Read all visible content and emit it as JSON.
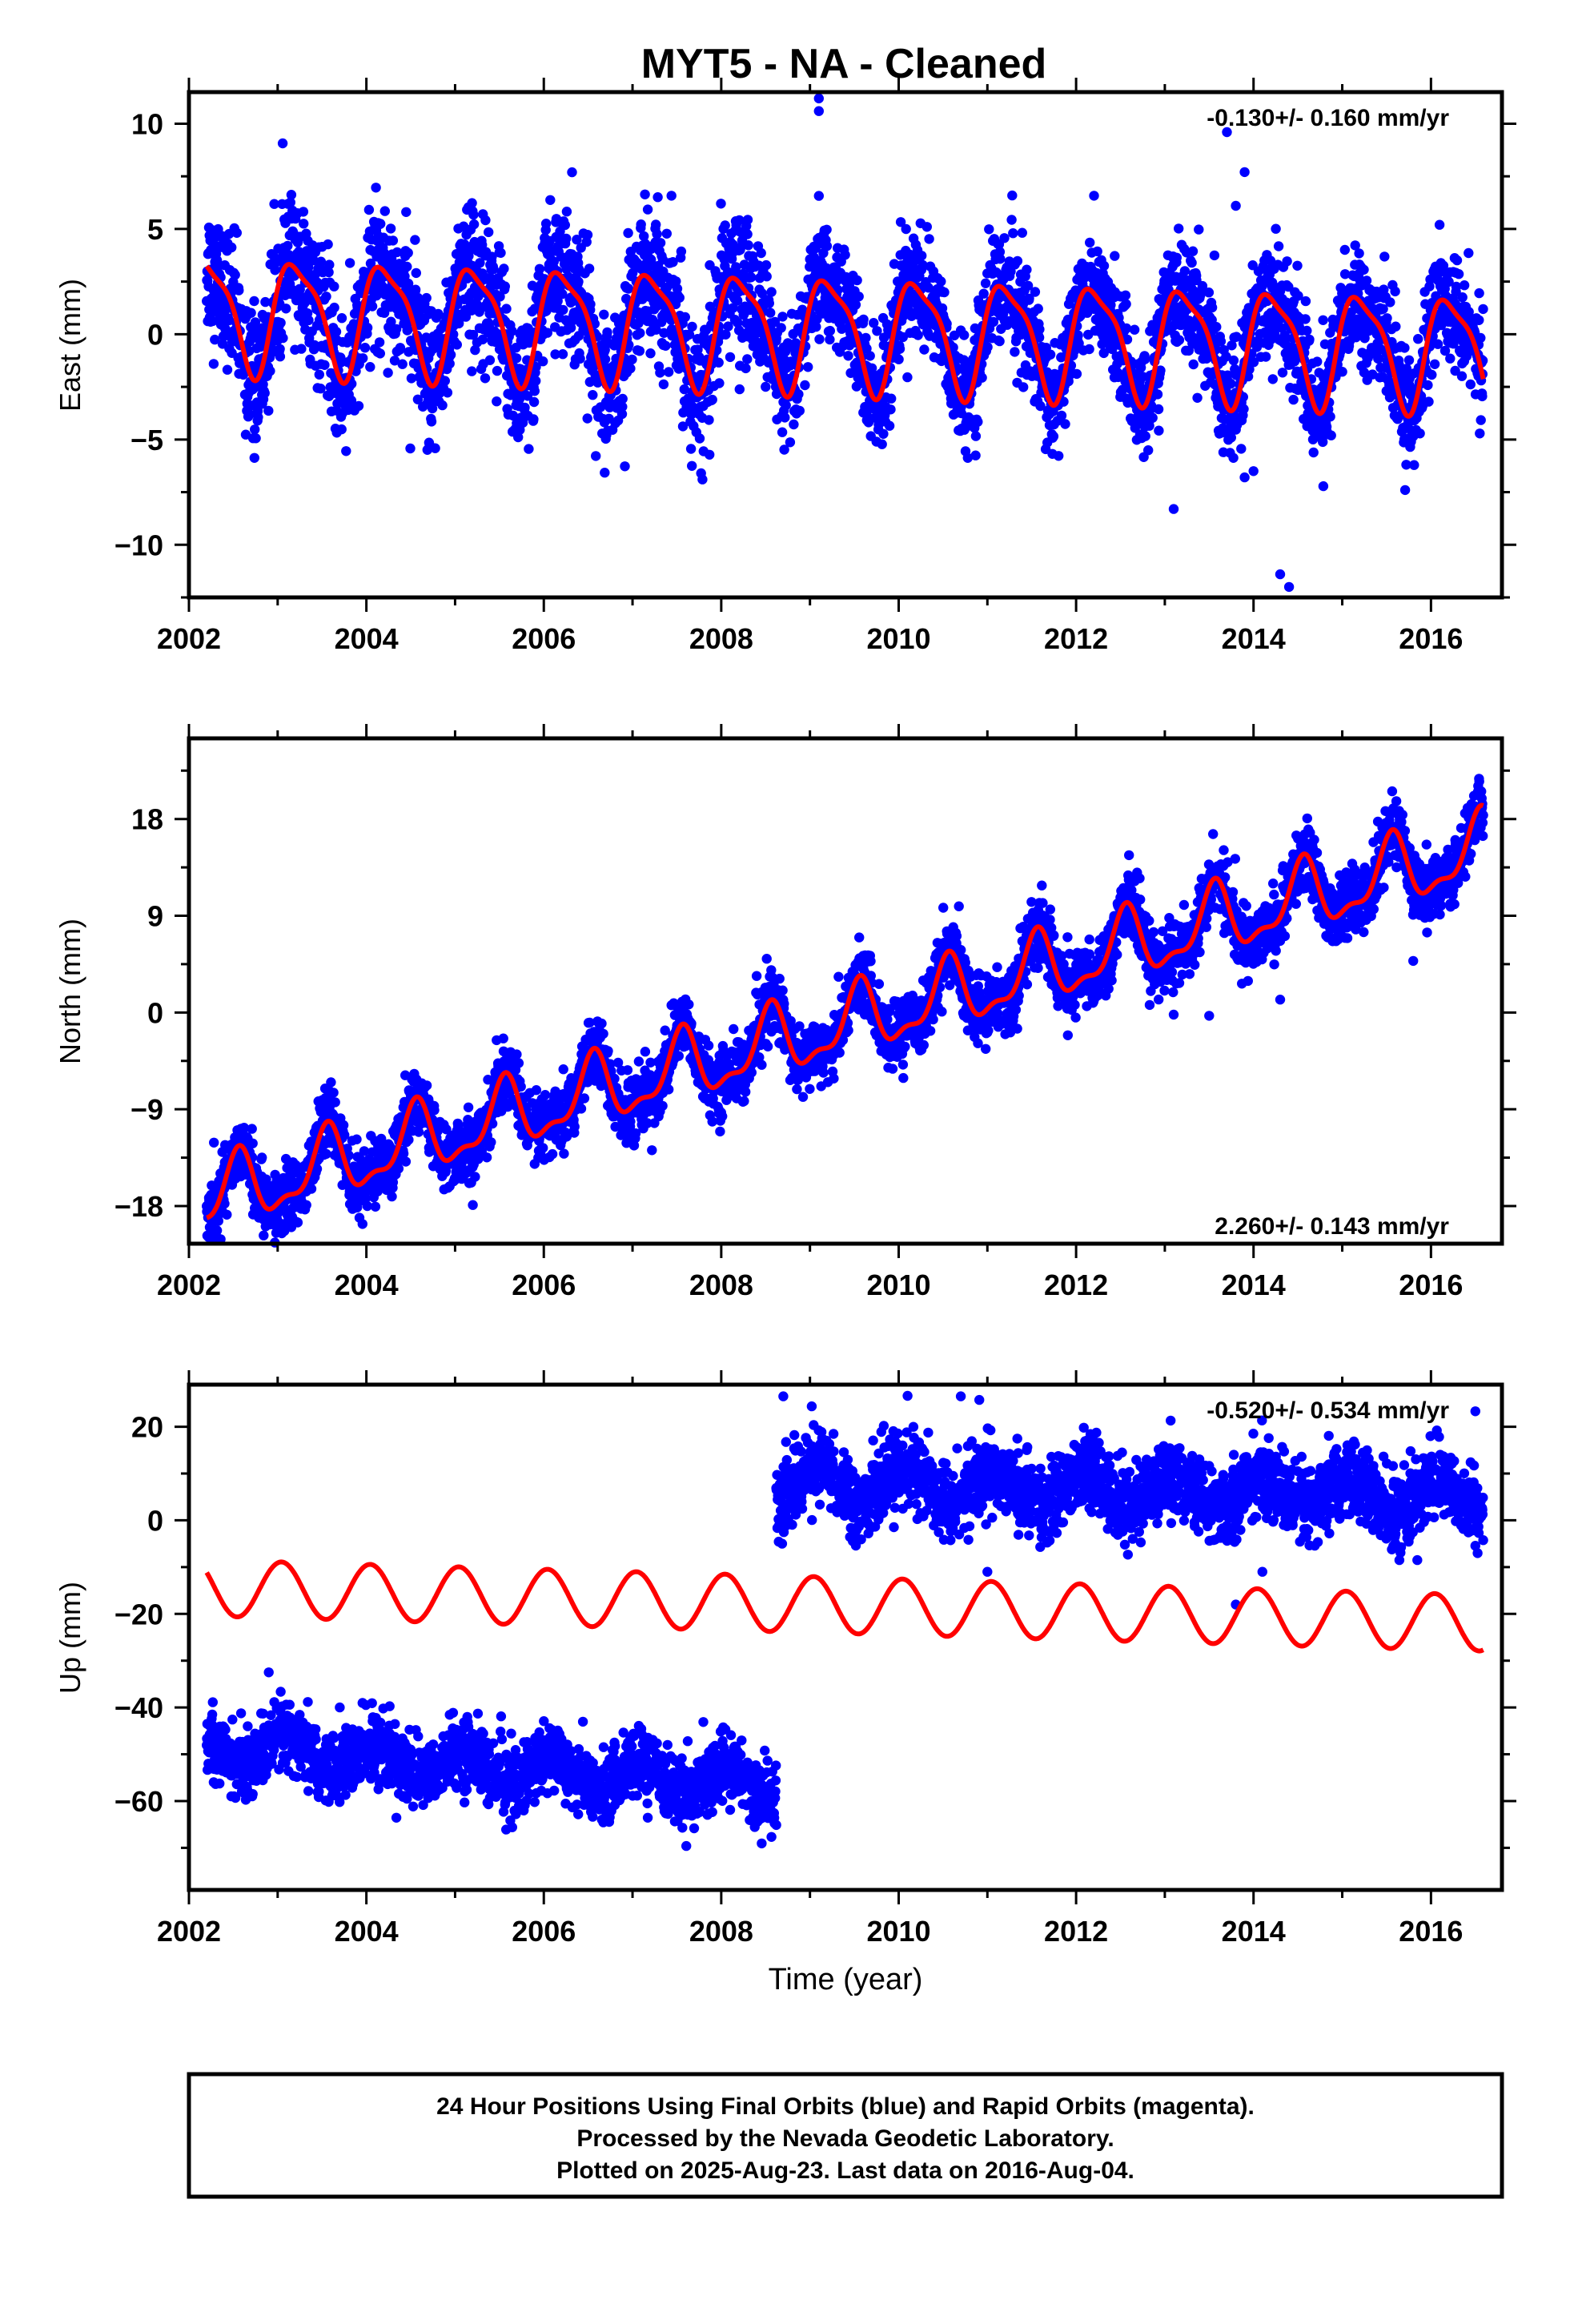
{
  "title": "MYT5  - NA - Cleaned",
  "colors": {
    "final_orbits": "#0000ff",
    "model_fit": "#ff0000",
    "frame": "#000000"
  },
  "chart_data": [
    {
      "type": "scatter",
      "component": "east",
      "ylabel": "East (mm)",
      "xlabel": "",
      "rate_label": "-0.130+/- 0.160 mm/yr",
      "xlim": [
        2002.0,
        2016.8
      ],
      "ylim": [
        -12.5,
        11.5
      ],
      "x_ticks": [
        2002,
        2004,
        2006,
        2008,
        2010,
        2012,
        2014,
        2016
      ],
      "y_ticks": [
        -10,
        -5,
        0,
        5,
        10
      ],
      "grid": false,
      "data_range": [
        2002.2,
        2016.59
      ],
      "series": [
        {
          "kind": "points",
          "color": "#0000ff",
          "model": {
            "segments": [
              {
                "from": 2002.2,
                "to": 2008.6,
                "offset": 0.2,
                "trend": -0.13,
                "annual_amp": 2.6,
                "annual_phase": 0.2,
                "semi_amp": 0.7,
                "semi_phase": 1.3,
                "scatter": 1.6
              },
              {
                "from": 2008.6,
                "to": 2016.59,
                "offset": 0.2,
                "trend": -0.13,
                "annual_amp": 2.6,
                "annual_phase": 0.2,
                "semi_amp": 0.7,
                "semi_phase": 1.3,
                "scatter": 1.3
              }
            ]
          },
          "outliers": [
            [
              2009.1,
              11.2
            ],
            [
              2009.1,
              10.6
            ],
            [
              2013.7,
              9.6
            ],
            [
              2013.9,
              7.7
            ],
            [
              2013.8,
              6.1
            ],
            [
              2013.9,
              -6.8
            ],
            [
              2014.3,
              -11.4
            ],
            [
              2014.4,
              -12.0
            ],
            [
              2013.1,
              -8.3
            ],
            [
              2014.0,
              -6.5
            ]
          ]
        },
        {
          "kind": "line",
          "color": "#ff0000",
          "model": {
            "offset": 0.2,
            "trend": -0.13,
            "annual_amp": 2.6,
            "annual_phase": 0.2,
            "semi_amp": 0.7,
            "semi_phase": 1.3,
            "from": 2002.2,
            "to": 2016.59
          }
        }
      ]
    },
    {
      "type": "scatter",
      "component": "north",
      "ylabel": "North (mm)",
      "xlabel": "",
      "rate_label": "2.260+/- 0.143 mm/yr",
      "xlim": [
        2002.0,
        2016.8
      ],
      "ylim": [
        -21.5,
        25.5
      ],
      "x_ticks": [
        2002,
        2004,
        2006,
        2008,
        2010,
        2012,
        2014,
        2016
      ],
      "y_ticks": [
        -18,
        -9,
        0,
        9,
        18
      ],
      "grid": false,
      "data_range": [
        2002.2,
        2016.59
      ],
      "series": [
        {
          "kind": "points",
          "color": "#0000ff",
          "model": {
            "segments": [
              {
                "from": 2002.2,
                "to": 2016.59,
                "offset": -2.0,
                "trend": 2.26,
                "annual_amp": 3.0,
                "annual_phase": 4.4,
                "semi_amp": 1.2,
                "semi_phase": 0.6,
                "scatter": 1.5
              }
            ]
          },
          "outliers": [
            [
              2005.2,
              -17.9
            ],
            [
              2013.1,
              -0.2
            ],
            [
              2013.5,
              -0.3
            ],
            [
              2014.3,
              1.2
            ],
            [
              2015.8,
              4.8
            ],
            [
              2004.7,
              -10.0
            ]
          ]
        },
        {
          "kind": "line",
          "color": "#ff0000",
          "model": {
            "offset": -2.0,
            "trend": 2.26,
            "annual_amp": 3.0,
            "annual_phase": 4.4,
            "semi_amp": 1.2,
            "semi_phase": 0.6,
            "from": 2002.2,
            "to": 2016.59
          }
        }
      ]
    },
    {
      "type": "scatter",
      "component": "up",
      "ylabel": "Up (mm)",
      "xlabel": "Time (year)",
      "rate_label": "-0.520+/- 0.534 mm/yr",
      "xlim": [
        2002.0,
        2016.8
      ],
      "ylim": [
        -79,
        29
      ],
      "x_ticks": [
        2002,
        2004,
        2006,
        2008,
        2010,
        2012,
        2014,
        2016
      ],
      "y_ticks": [
        -60,
        -40,
        -20,
        0,
        20
      ],
      "grid": false,
      "data_range": [
        2002.2,
        2016.59
      ],
      "series": [
        {
          "kind": "points",
          "color": "#0000ff",
          "model": {
            "segments": [
              {
                "from": 2002.2,
                "to": 2008.62,
                "offset": -57.5,
                "trend": -1.3,
                "annual_amp": 3.0,
                "annual_phase": 1.0,
                "semi_amp": 0.0,
                "semi_phase": 0.0,
                "scatter": 3.6
              },
              {
                "from": 2008.62,
                "to": 2016.59,
                "offset": 8.0,
                "trend": -0.45,
                "annual_amp": 3.5,
                "annual_phase": 1.0,
                "semi_amp": 0.0,
                "semi_phase": 0.0,
                "scatter": 4.0
              }
            ]
          },
          "outliers": [
            [
              2002.9,
              -32.5
            ],
            [
              2008.7,
              26.5
            ],
            [
              2010.1,
              26.6
            ],
            [
              2010.7,
              26.5
            ],
            [
              2011.0,
              -11.0
            ],
            [
              2013.8,
              -18.0
            ],
            [
              2014.1,
              -11.0
            ],
            [
              2016.5,
              23.3
            ],
            [
              2003.7,
              -40.0
            ]
          ]
        },
        {
          "kind": "line",
          "color": "#ff0000",
          "model": {
            "offset": -18.0,
            "trend": -0.52,
            "annual_amp": 6.0,
            "annual_phase": 1.3,
            "semi_amp": 0.0,
            "semi_phase": 0.0,
            "from": 2002.2,
            "to": 2016.59
          }
        }
      ]
    }
  ],
  "footer": {
    "line1": "24 Hour Positions Using Final Orbits (blue) and Rapid Orbits (magenta).",
    "line2": "Processed by the Nevada Geodetic Laboratory.",
    "line3": "Plotted on 2025-Aug-23. Last data on 2016-Aug-04."
  }
}
